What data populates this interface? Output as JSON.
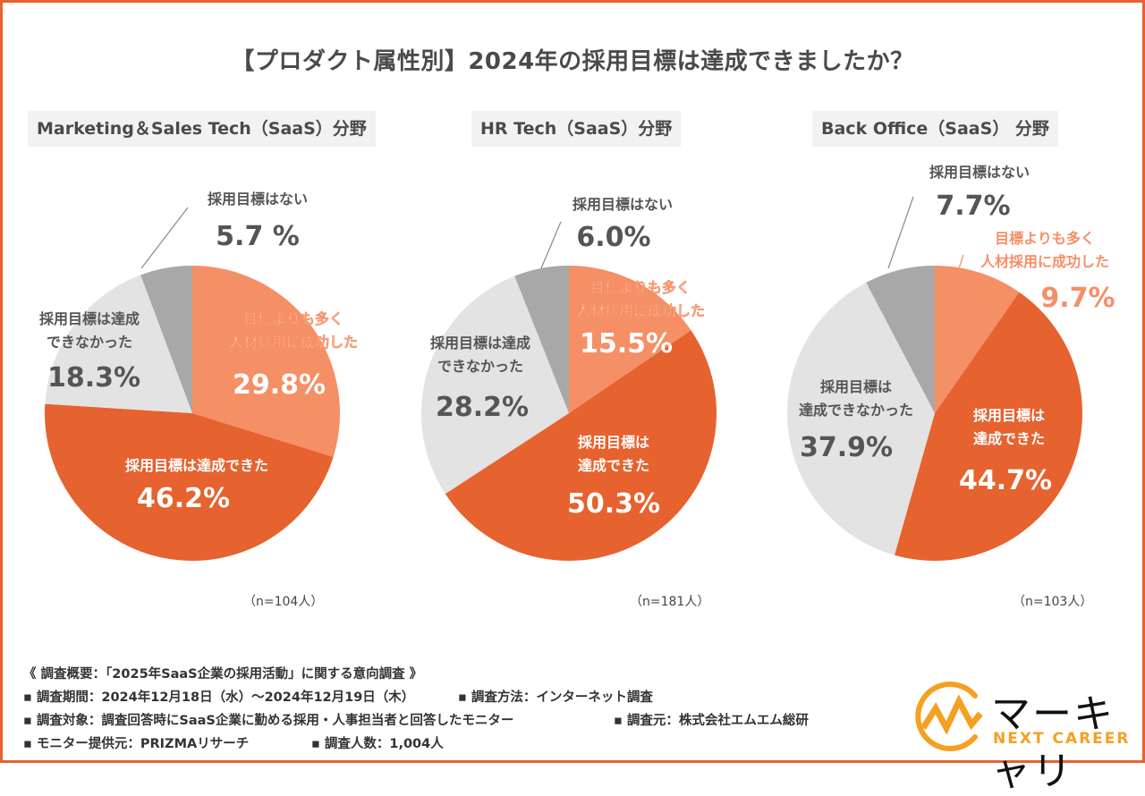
{
  "title": "【プロダクト属性別】2024年の採用目標は達成できましたか？",
  "colors": {
    "frame": "#e6622e",
    "exceeded": "#f58f66",
    "achieved": "#e6622e",
    "not_achieved": "#e3e3e3",
    "no_target": "#a8a8a8"
  },
  "chart_data": [
    {
      "type": "pie",
      "title": "Marketing＆Sales Tech（SaaS）分野",
      "n_label": "（n=104人）",
      "start": "12 o'clock, clockwise",
      "slices": [
        {
          "key": "exceeded",
          "label": "目標よりも多く人材採用に成功した",
          "value": 29.8,
          "display": "29.8%"
        },
        {
          "key": "achieved",
          "label": "採用目標は達成できた",
          "value": 46.2,
          "display": "46.2%"
        },
        {
          "key": "not_achieved",
          "label": "採用目標は達成できなかった",
          "value": 18.3,
          "display": "18.3%"
        },
        {
          "key": "no_target",
          "label": "採用目標はない",
          "value": 5.7,
          "display": "5.7 %"
        }
      ]
    },
    {
      "type": "pie",
      "title": "HR Tech（SaaS）分野",
      "n_label": "（n=181人）",
      "start": "12 o'clock, clockwise",
      "slices": [
        {
          "key": "exceeded",
          "label": "目標よりも多く人材採用に成功した",
          "value": 15.5,
          "display": "15.5%"
        },
        {
          "key": "achieved",
          "label": "採用目標は達成できた",
          "value": 50.3,
          "display": "50.3%"
        },
        {
          "key": "not_achieved",
          "label": "採用目標は達成できなかった",
          "value": 28.2,
          "display": "28.2%"
        },
        {
          "key": "no_target",
          "label": "採用目標はない",
          "value": 6.0,
          "display": "6.0%"
        }
      ]
    },
    {
      "type": "pie",
      "title": "Back Office（SaaS） 分野",
      "n_label": "（n=103人）",
      "start": "12 o'clock, clockwise",
      "slices": [
        {
          "key": "exceeded",
          "label": "目標よりも多く人材採用に成功した",
          "value": 9.7,
          "display": "9.7%"
        },
        {
          "key": "achieved",
          "label": "採用目標は達成できた",
          "value": 44.7,
          "display": "44.7%"
        },
        {
          "key": "not_achieved",
          "label": "採用目標は達成できなかった",
          "value": 37.9,
          "display": "37.9%"
        },
        {
          "key": "no_target",
          "label": "採用目標はない",
          "value": 7.7,
          "display": "7.7%"
        }
      ]
    }
  ],
  "slice_label_lines": {
    "pie0": {
      "exceeded": [
        "目標よりも多く",
        "人材採用に成功した"
      ],
      "achieved": [
        "採用目標は達成できた"
      ],
      "not_achieved": [
        "採用目標は達成",
        "できなかった"
      ],
      "no_target": [
        "採用目標はない"
      ]
    },
    "pie1": {
      "exceeded": [
        "目標よりも多く",
        "人材採用に成功した"
      ],
      "achieved": [
        "採用目標は",
        "達成できた"
      ],
      "not_achieved": [
        "採用目標は達成",
        "できなかった"
      ],
      "no_target": [
        "採用目標はない"
      ]
    },
    "pie2": {
      "exceeded": [
        "目標よりも多く",
        "人材採用に成功した"
      ],
      "achieved": [
        "採用目標は",
        "達成できた"
      ],
      "not_achieved": [
        "採用目標は",
        "達成できなかった"
      ],
      "no_target": [
        "採用目標はない"
      ]
    }
  },
  "notes": {
    "heading": "《 調査概要：「2025年SaaS企業の採用活動」に関する意向調査 》",
    "period": "▪ 調査期間：2024年12月18日（水）〜2024年12月19日（木）",
    "method": "▪ 調査方法：インターネット調査",
    "target": "▪ 調査対象：調査回答時にSaaS企業に勤める採用・人事担当者と回答したモニター",
    "source": "▪ 調査元：株式会社エムエム総研",
    "provider": "▪ モニター提供元：PRIZMAリサーチ",
    "count": "▪ 調査人数：1,004人"
  },
  "logo": {
    "jp": "マーキャリ",
    "en": "NEXT CAREER",
    "icon": "mountain-c-logo-icon"
  }
}
